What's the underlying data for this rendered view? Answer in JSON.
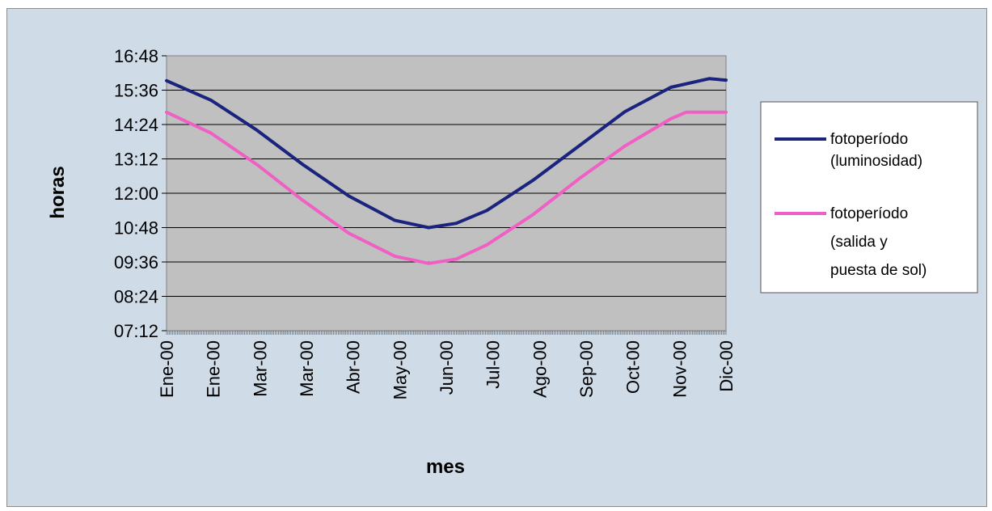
{
  "chart_data": {
    "type": "line",
    "xlabel": "mes",
    "ylabel": "horas",
    "x_tick_labels": [
      "Ene-00",
      "Ene-00",
      "Mar-00",
      "Mar-00",
      "Abr-00",
      "May-00",
      "Jun-00",
      "Jul-00",
      "Ago-00",
      "Sep-00",
      "Oct-00",
      "Nov-00",
      "Dic-00"
    ],
    "y_tick_labels": [
      "07:12",
      "08:24",
      "09:36",
      "10:48",
      "12:00",
      "13:12",
      "14:24",
      "15:36",
      "16:48"
    ],
    "ylim_hours": [
      7.2,
      16.8
    ],
    "x_day_range": [
      1,
      366
    ],
    "grid": "horizontal",
    "legend_position": "right",
    "colors": {
      "plot_bg": "#c0c0c0",
      "outer_bg": "#cfdce8",
      "series1": "#1a237e",
      "series2": "#ef5fc4"
    },
    "series": [
      {
        "name": "fotoperíodo (luminosidad)",
        "x_day": [
          1,
          30,
          60,
          90,
          120,
          150,
          172,
          190,
          210,
          240,
          270,
          300,
          330,
          355,
          366
        ],
        "y_hours": [
          15.93,
          15.25,
          14.2,
          13.0,
          11.9,
          11.05,
          10.8,
          10.95,
          11.4,
          12.45,
          13.65,
          14.85,
          15.7,
          16.0,
          15.95
        ]
      },
      {
        "name": "fotoperíodo (salida y puesta de sol)",
        "x_day": [
          1,
          30,
          60,
          90,
          120,
          150,
          172,
          190,
          210,
          240,
          270,
          300,
          330,
          340,
          366
        ],
        "y_hours": [
          14.83,
          14.1,
          13.0,
          11.75,
          10.6,
          9.8,
          9.55,
          9.7,
          10.2,
          11.25,
          12.5,
          13.65,
          14.6,
          14.83,
          14.83
        ]
      }
    ]
  }
}
